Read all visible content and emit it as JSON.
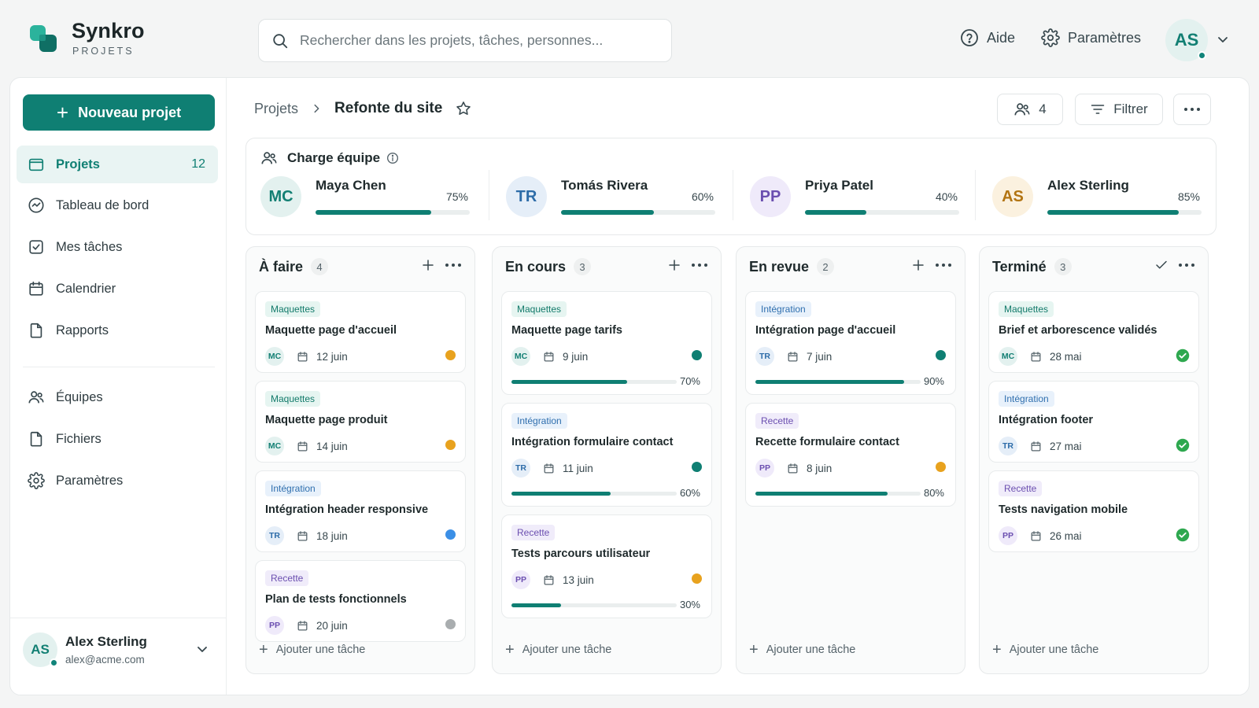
{
  "brand": {
    "name": "Synkro",
    "sub": "PROJETS"
  },
  "search": {
    "placeholder": "Rechercher dans les projets, tâches, personnes..."
  },
  "topbar": {
    "help": "Aide",
    "settings": "Paramètres",
    "avatar": "AS"
  },
  "sidebar": {
    "new_project": "Nouveau projet",
    "items": [
      {
        "label": "Projets",
        "count": "12",
        "icon": "folder-icon"
      },
      {
        "label": "Tableau de bord",
        "icon": "dashboard-icon"
      },
      {
        "label": "Mes tâches",
        "icon": "checkbox-icon"
      },
      {
        "label": "Calendrier",
        "icon": "calendar-icon"
      },
      {
        "label": "Rapports",
        "icon": "file-icon"
      },
      {
        "label": "Équipes",
        "icon": "users-icon"
      },
      {
        "label": "Fichiers",
        "icon": "file-icon"
      },
      {
        "label": "Paramètres",
        "icon": "gear-icon"
      }
    ],
    "user": {
      "initials": "AS",
      "name": "Alex Sterling",
      "email": "alex@acme.com"
    }
  },
  "header": {
    "breadcrumb_parent": "Projets",
    "breadcrumb_current": "Refonte du site",
    "members_count": "4",
    "filter": "Filtrer"
  },
  "workload": {
    "title": "Charge équipe",
    "members": [
      {
        "initials": "MC",
        "name": "Maya Chen",
        "pct": "75%",
        "value": 0.75
      },
      {
        "initials": "TR",
        "name": "Tomás Rivera",
        "pct": "60%",
        "value": 0.6
      },
      {
        "initials": "PP",
        "name": "Priya Patel",
        "pct": "40%",
        "value": 0.4
      },
      {
        "initials": "AS",
        "name": "Alex Sterling",
        "pct": "85%",
        "value": 0.85
      }
    ]
  },
  "add_task": "Ajouter une tâche",
  "columns": [
    {
      "title": "À faire",
      "count": "4",
      "cards": [
        {
          "tag": "Maquettes",
          "title": "Maquette page d'accueil",
          "avatar": "MC",
          "date": "12 juin",
          "status": "#e8a21e"
        },
        {
          "tag": "Maquettes",
          "title": "Maquette page produit",
          "avatar": "MC",
          "date": "14 juin",
          "status": "#e8a21e"
        },
        {
          "tag": "Intégration",
          "title": "Intégration header responsive",
          "avatar": "TR",
          "date": "18 juin",
          "status": "#3b8fe6"
        },
        {
          "tag": "Recette",
          "title": "Plan de tests fonctionnels",
          "avatar": "PP",
          "date": "20 juin",
          "status": "#a9adaf"
        }
      ]
    },
    {
      "title": "En cours",
      "count": "3",
      "cards": [
        {
          "tag": "Maquettes",
          "title": "Maquette page tarifs",
          "avatar": "MC",
          "date": "9 juin",
          "status": "#0f7f73",
          "progress": "70%",
          "progress_value": 0.7
        },
        {
          "tag": "Intégration",
          "title": "Intégration formulaire contact",
          "avatar": "TR",
          "date": "11 juin",
          "status": "#0f7f73",
          "progress": "60%",
          "progress_value": 0.6
        },
        {
          "tag": "Recette",
          "title": "Tests parcours utilisateur",
          "avatar": "PP",
          "date": "13 juin",
          "status": "#e8a21e",
          "progress": "30%",
          "progress_value": 0.3
        }
      ]
    },
    {
      "title": "En revue",
      "count": "2",
      "cards": [
        {
          "tag": "Intégration",
          "title": "Intégration page d'accueil",
          "avatar": "TR",
          "date": "7 juin",
          "status": "#0f7f73",
          "progress": "90%",
          "progress_value": 0.9
        },
        {
          "tag": "Recette",
          "title": "Recette formulaire contact",
          "avatar": "PP",
          "date": "8 juin",
          "status": "#e8a21e",
          "progress": "80%",
          "progress_value": 0.8
        }
      ]
    },
    {
      "title": "Terminé",
      "count": "3",
      "cards": [
        {
          "tag": "Maquettes",
          "title": "Brief et arborescence validés",
          "avatar": "MC",
          "date": "28 mai",
          "status": "done"
        },
        {
          "tag": "Intégration",
          "title": "Intégration footer",
          "avatar": "TR",
          "date": "27 mai",
          "status": "done"
        },
        {
          "tag": "Recette",
          "title": "Tests navigation mobile",
          "avatar": "PP",
          "date": "26 mai",
          "status": "done"
        }
      ]
    }
  ],
  "colors": {
    "accent": "#0f7f73",
    "tag_maquettes": "#127a6a",
    "tag_integration": "#2f6fae",
    "tag_recette": "#6b4fb0"
  }
}
